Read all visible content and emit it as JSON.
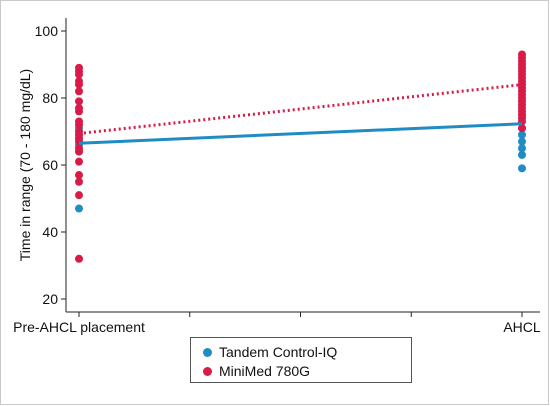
{
  "chart_data": {
    "type": "scatter",
    "xlabel": "",
    "ylabel": "Time in range (70 - 180 mg/dL)",
    "categories": [
      "Pre-AHCL placement",
      "AHCL"
    ],
    "ylim": [
      20,
      100
    ],
    "yticks": [
      20,
      40,
      60,
      80,
      100
    ],
    "grid": false,
    "legend_position": "bottom",
    "series": [
      {
        "name": "Tandem Control-IQ",
        "color": "#1f8dc3",
        "points_pre": [
          71,
          68,
          66,
          64,
          47
        ],
        "points_ahcl": [
          75,
          71,
          69,
          67,
          65,
          63,
          59
        ],
        "fit_line": [
          66.5,
          72.3
        ],
        "line_style": "solid"
      },
      {
        "name": "MiniMed 780G",
        "color": "#d81b47",
        "points_pre": [
          89,
          88,
          87,
          85,
          84,
          82,
          79,
          77,
          76,
          73,
          72,
          70,
          69,
          68,
          67,
          65,
          64,
          61,
          57,
          55,
          51,
          32
        ],
        "points_ahcl": [
          93,
          92,
          91,
          90,
          89,
          88,
          87,
          86,
          85,
          84,
          83,
          82,
          81,
          80,
          79,
          78,
          77,
          76,
          75,
          74,
          73,
          71
        ],
        "fit_line": [
          69.4,
          84.0
        ],
        "line_style": "dotted"
      }
    ]
  }
}
